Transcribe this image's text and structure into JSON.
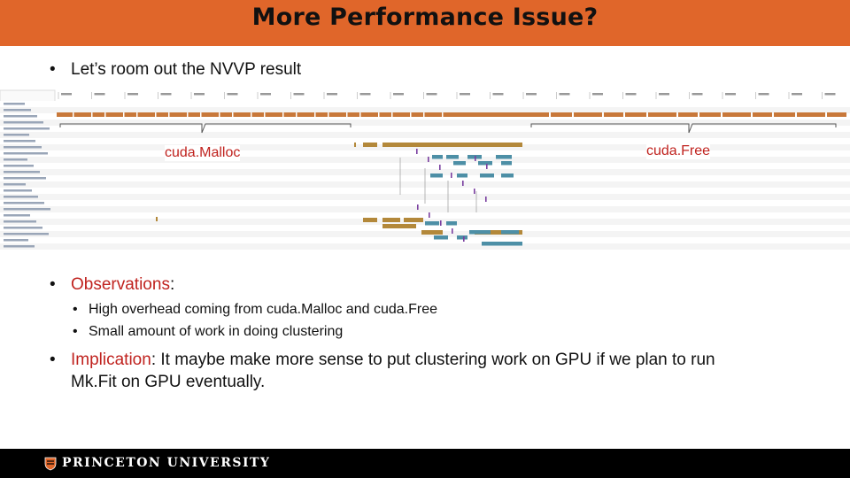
{
  "slide": {
    "title": "More Performance Issue?",
    "bullet1": "Let’s room out the NVVP result",
    "observations_label": "Observations",
    "observations_colon": ":",
    "sub1": "High overhead coming from cuda.Malloc and cuda.Free",
    "sub2": "Small amount of work in doing clustering",
    "implication_label": "Implication",
    "implication_text_line1": ": It maybe make more sense to put clustering work on GPU if we plan to run",
    "implication_text_line2": "Mk.Fit on GPU eventually.",
    "bullet_char": "•",
    "sub_bullet_char": "•"
  },
  "nvvp": {
    "label_malloc": "cuda.Malloc",
    "label_free": "cuda.Free",
    "colors": {
      "api": "#c8783a",
      "kernel": "#b3883a",
      "memcpy": "#4d8fa6",
      "marker": "#7a3fa0",
      "grid": "#e6e6e6"
    }
  },
  "footer": {
    "brand": "PRINCETON UNIVERSITY"
  }
}
